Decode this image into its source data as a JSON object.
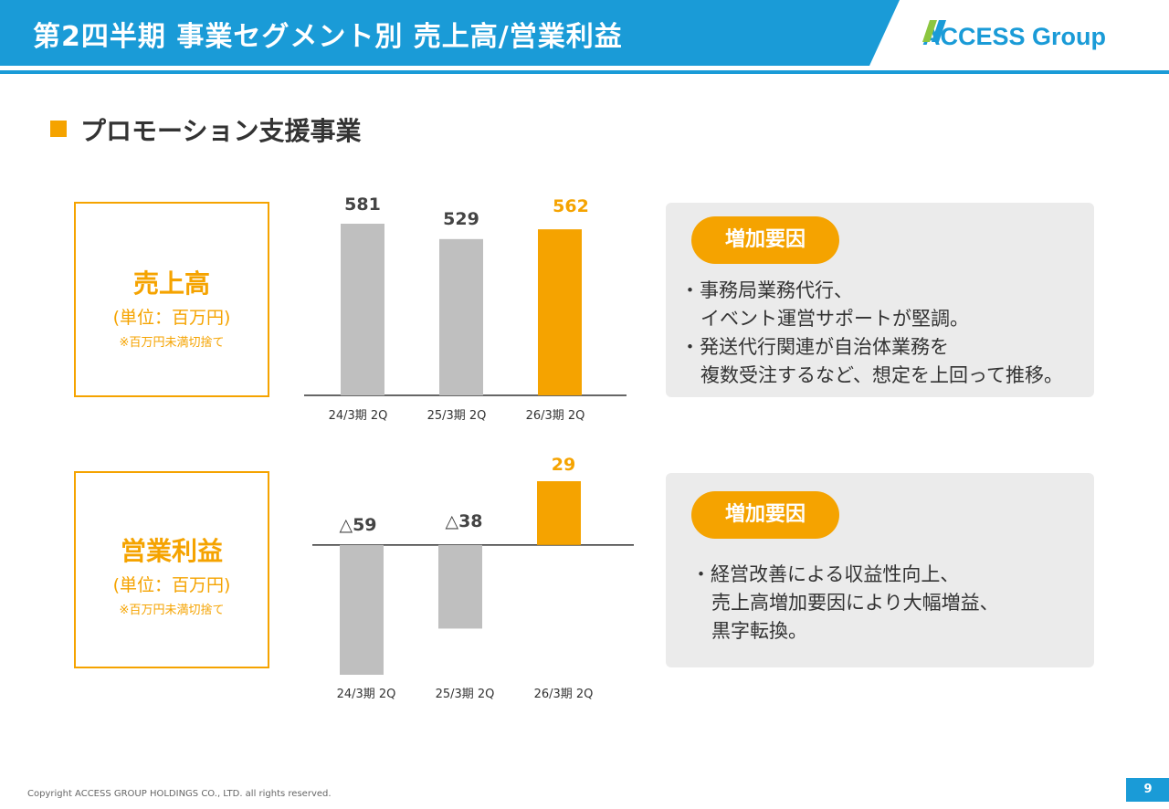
{
  "header": {
    "title": "第2四半期 事業セグメント別 売上高/営業利益",
    "logo_text": "ACCESS Group",
    "bar_color": "#1a9bd7"
  },
  "section": {
    "title": "プロモーション支援事業"
  },
  "accent_color": "#f5a300",
  "bar_gray": "#bfbfbf",
  "sales_label": {
    "title": "売上高",
    "unit": "(単位：百万円)",
    "note": "※百万円未満切捨て"
  },
  "profit_label": {
    "title": "営業利益",
    "unit": "(単位：百万円)",
    "note": "※百万円未満切捨て"
  },
  "chart_data": [
    {
      "type": "bar",
      "title": "売上高",
      "categories": [
        "24/3期 2Q",
        "25/3期 2Q",
        "26/3期 2Q"
      ],
      "values": [
        581,
        529,
        562
      ],
      "value_labels": [
        "581",
        "529",
        "562"
      ],
      "highlight_index": 2,
      "ylabel": "百万円",
      "ylim": [
        0,
        581
      ]
    },
    {
      "type": "bar",
      "title": "営業利益",
      "categories": [
        "24/3期 2Q",
        "25/3期 2Q",
        "26/3期 2Q"
      ],
      "values": [
        -59,
        -38,
        29
      ],
      "value_labels": [
        "△59",
        "△38",
        "29"
      ],
      "highlight_index": 2,
      "ylabel": "百万円",
      "ylim": [
        -59,
        29
      ]
    }
  ],
  "factors": [
    {
      "badge": "増加要因",
      "lines": [
        "・事務局業務代行、",
        "イベント運営サポートが堅調。",
        "・発送代行関連が自治体業務を",
        "複数受注するなど、想定を上回って推移。"
      ]
    },
    {
      "badge": "増加要因",
      "lines": [
        "・経営改善による収益性向上、",
        "売上高増加要因により大幅増益、",
        "黒字転換。"
      ]
    }
  ],
  "footer": {
    "copyright": "Copyright ACCESS GROUP HOLDINGS CO., LTD. all rights reserved.",
    "page": "9"
  }
}
